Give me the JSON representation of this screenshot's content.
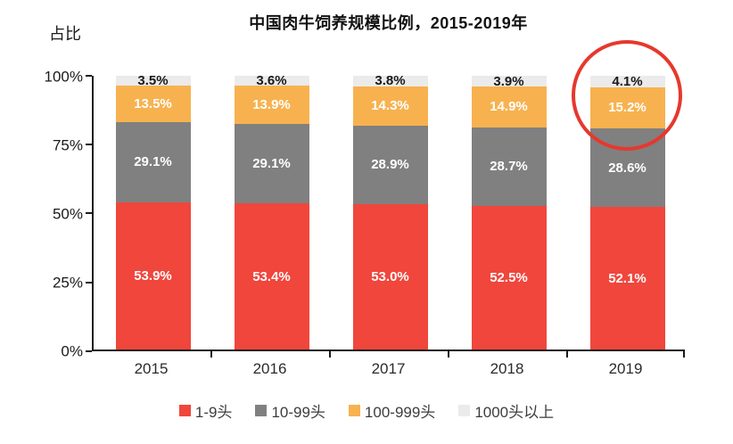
{
  "title": "中国肉牛饲养规模比例，2015-2019年",
  "y_axis_title": "占比",
  "y_ticks": [
    "0%",
    "25%",
    "50%",
    "75%",
    "100%"
  ],
  "colors": {
    "series_red": "#f0463c",
    "series_gray": "#808080",
    "series_orange": "#f7b24f",
    "series_lightgray": "#ebebeb",
    "annotation_circle": "#e6382d",
    "axis": "#1a1a1a"
  },
  "chart_data": {
    "type": "bar",
    "stacked": true,
    "title": "中国肉牛饲养规模比例，2015-2019年",
    "xlabel": "",
    "ylabel": "占比",
    "ylim": [
      0,
      100
    ],
    "grid": false,
    "legend_position": "bottom",
    "categories": [
      "2015",
      "2016",
      "2017",
      "2018",
      "2019"
    ],
    "series": [
      {
        "name": "1-9头",
        "color": "#f0463c",
        "label_color": "#ffffff",
        "values": [
          53.9,
          53.4,
          53.0,
          52.5,
          52.1
        ]
      },
      {
        "name": "10-99头",
        "color": "#808080",
        "label_color": "#ffffff",
        "values": [
          29.1,
          29.1,
          28.9,
          28.7,
          28.6
        ]
      },
      {
        "name": "100-999头",
        "color": "#f7b24f",
        "label_color": "#ffffff",
        "values": [
          13.5,
          13.9,
          14.3,
          14.9,
          15.2
        ]
      },
      {
        "name": "1000头以上",
        "color": "#ebebeb",
        "label_color": "#1a1a1a",
        "values": [
          3.5,
          3.6,
          3.8,
          3.9,
          4.1
        ]
      }
    ],
    "annotation": {
      "type": "circle",
      "note": "red circle highlighting top segments of 2019 bar"
    }
  },
  "legend": {
    "items": [
      {
        "label": "1-9头"
      },
      {
        "label": "10-99头"
      },
      {
        "label": "100-999头"
      },
      {
        "label": "1000头以上"
      }
    ]
  }
}
